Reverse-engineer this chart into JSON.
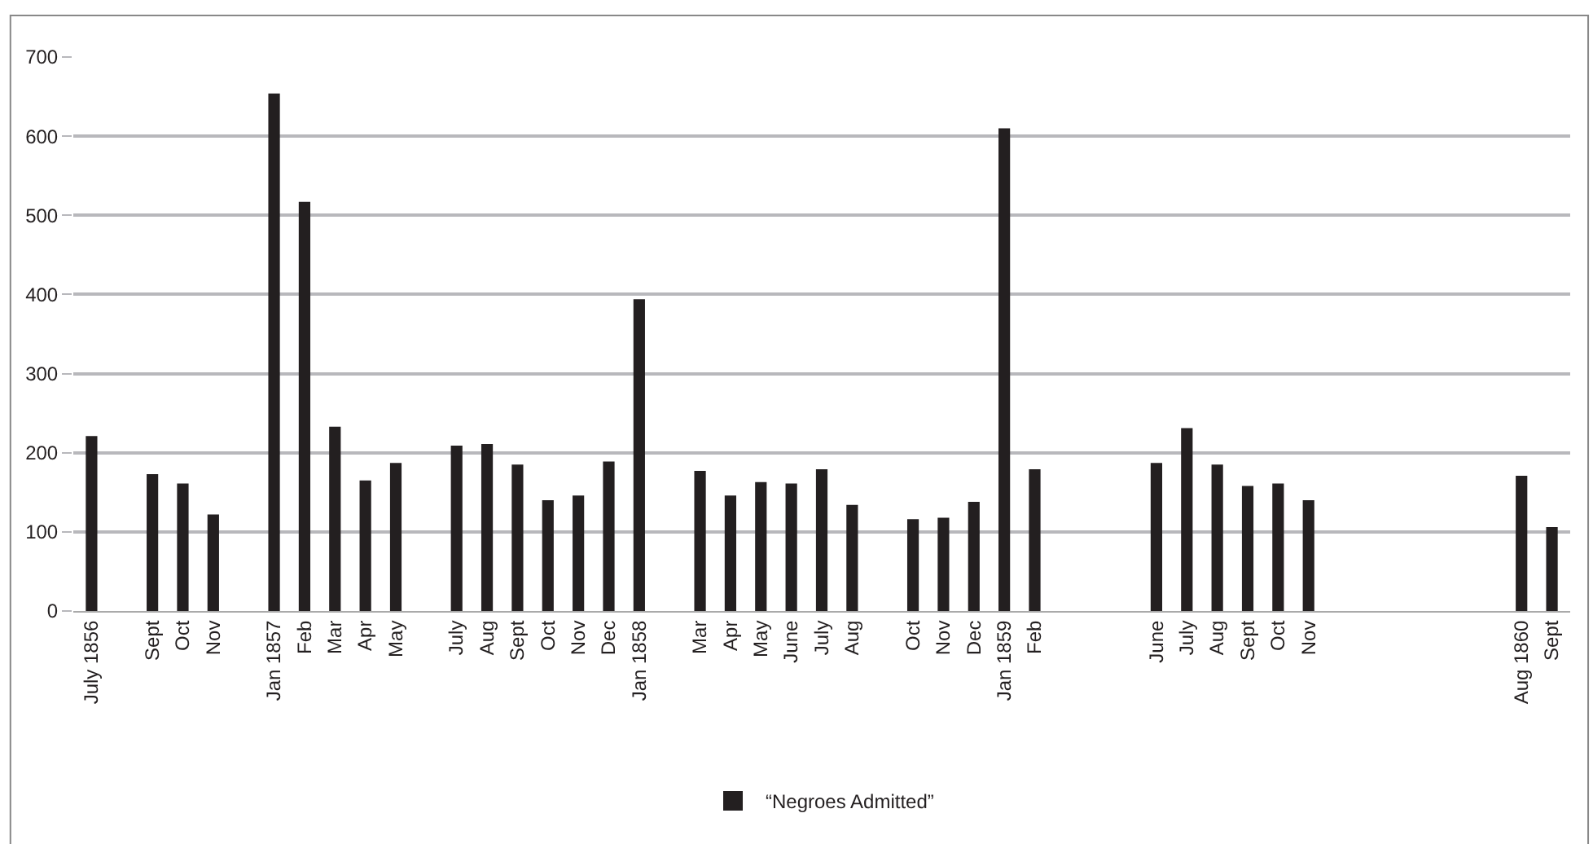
{
  "chart_data": {
    "type": "bar",
    "categories": [
      "July 1856",
      null,
      "Sept",
      "Oct",
      "Nov",
      null,
      "Jan 1857",
      "Feb",
      "Mar",
      "Apr",
      "May",
      null,
      "July",
      "Aug",
      "Sept",
      "Oct",
      "Nov",
      "Dec",
      "Jan 1858",
      null,
      "Mar",
      "Apr",
      "May",
      "June",
      "July",
      "Aug",
      null,
      "Oct",
      "Nov",
      "Dec",
      "Jan 1859",
      "Feb",
      null,
      null,
      null,
      "June",
      "July",
      "Aug",
      "Sept",
      "Oct",
      "Nov",
      null,
      null,
      null,
      null,
      null,
      null,
      "Aug 1860",
      "Sept"
    ],
    "series": [
      {
        "name": "“Negroes Admitted”",
        "color": "#231f20",
        "values": [
          221,
          null,
          173,
          161,
          122,
          null,
          654,
          517,
          233,
          165,
          187,
          null,
          209,
          211,
          185,
          140,
          146,
          189,
          394,
          null,
          177,
          146,
          163,
          161,
          179,
          134,
          null,
          116,
          118,
          138,
          610,
          179,
          null,
          null,
          null,
          187,
          231,
          185,
          158,
          161,
          140,
          null,
          null,
          null,
          null,
          null,
          null,
          171,
          106
        ]
      }
    ],
    "ylim": [
      0,
      700
    ],
    "yticks": [
      0,
      100,
      200,
      300,
      400,
      500,
      600,
      700
    ],
    "grid": "y",
    "legend": "bottom"
  }
}
